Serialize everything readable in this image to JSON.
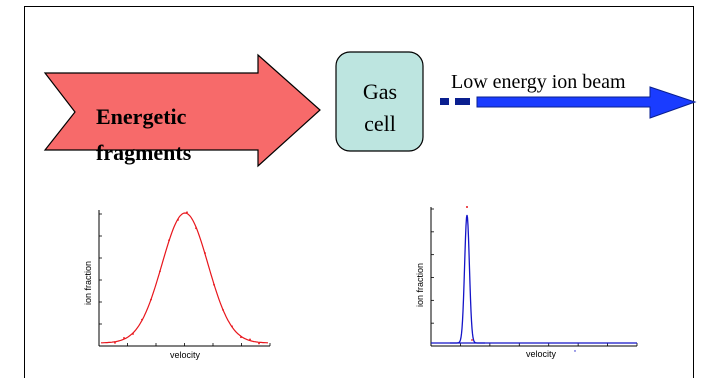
{
  "diagram": {
    "arrow_label_line1": "Energetic",
    "arrow_label_line2": "fragments",
    "gas_cell_line1": "Gas",
    "gas_cell_line2": "cell",
    "beam_label": "Low energy ion beam",
    "colors": {
      "big_arrow_fill": "#f76a6a",
      "gas_cell_fill": "#bde5e0",
      "beam_arrow_fill": "#1a3cff",
      "beam_dash": "#0a1f8f",
      "left_curve": "#e8161c",
      "right_curve": "#1414c8"
    }
  },
  "chart_data": [
    {
      "type": "line",
      "xlabel": "velocity",
      "ylabel": "ion fraction",
      "shape": "broad-gaussian"
    },
    {
      "type": "line",
      "xlabel": "velocity",
      "ylabel": "ion fraction",
      "shape": "narrow-peak"
    }
  ]
}
